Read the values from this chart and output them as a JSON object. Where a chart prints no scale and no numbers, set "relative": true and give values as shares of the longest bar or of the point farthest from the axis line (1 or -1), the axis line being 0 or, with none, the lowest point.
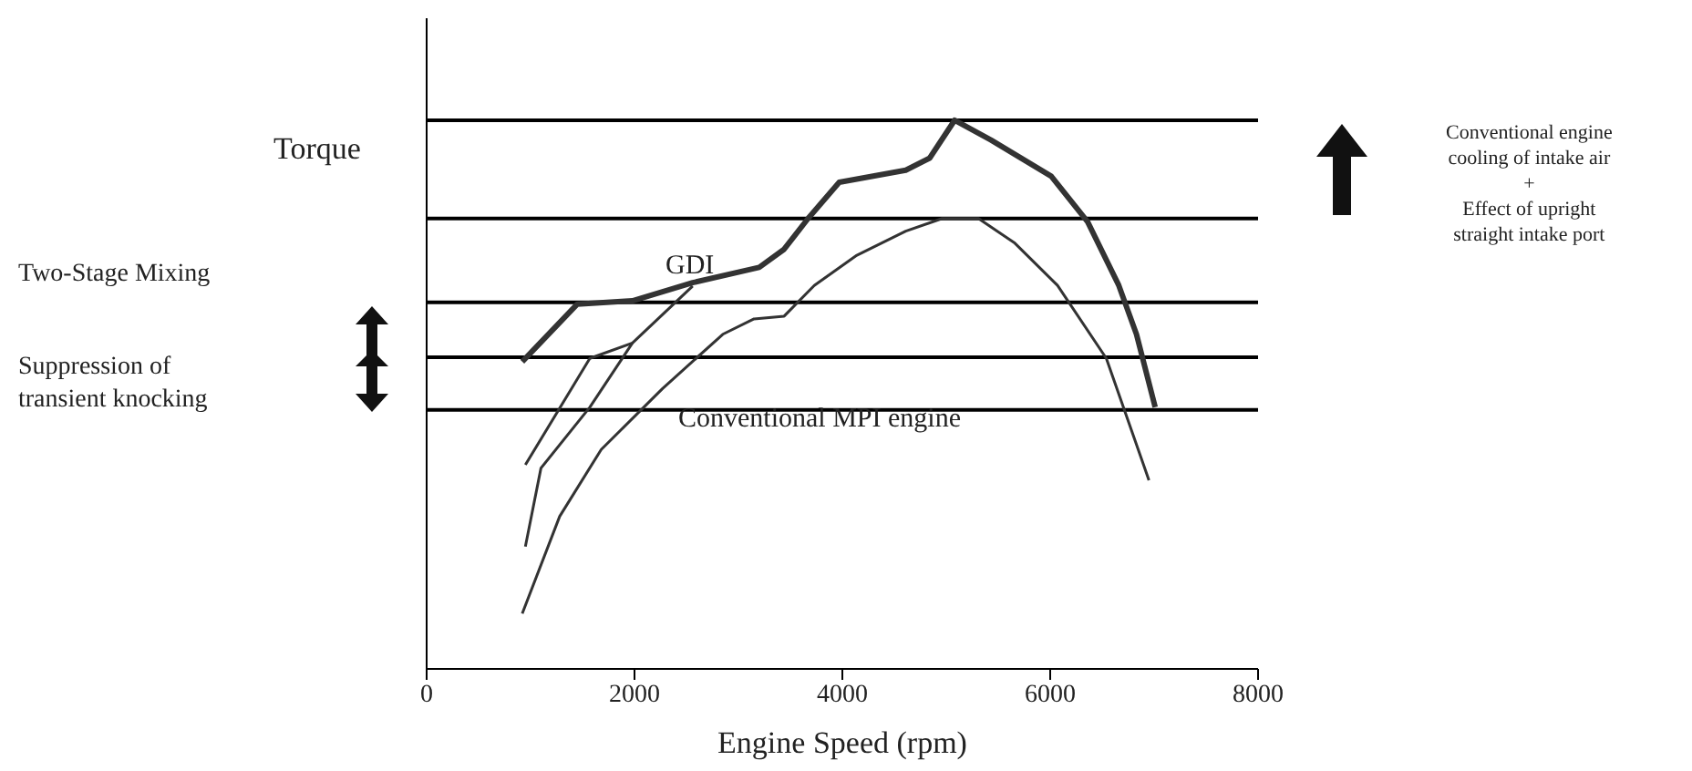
{
  "chart_data": {
    "type": "line",
    "relative": true,
    "xlabel": "Engine Speed (rpm)",
    "ylabel": "Torque",
    "xlim": [
      0,
      8000
    ],
    "xticks": [
      0,
      2000,
      4000,
      6000,
      8000
    ],
    "marker": "none",
    "line_style": "solid",
    "series": [
      {
        "name": "GDI",
        "color": "#333333",
        "x": [
          920,
          1450,
          1980,
          2560,
          3200,
          3440,
          3670,
          3970,
          4610,
          4840,
          5080,
          5430,
          6010,
          6360,
          6660,
          6830,
          7010
        ],
        "values": [
          0.56,
          0.665,
          0.671,
          0.704,
          0.732,
          0.765,
          0.821,
          0.887,
          0.909,
          0.931,
          1,
          0.964,
          0.898,
          0.815,
          0.699,
          0.61,
          0.477
        ]
      },
      {
        "color": "#333333",
        "x": [
          950,
          1570,
          1980,
          2560
        ],
        "values": [
          0.372,
          0.566,
          0.594,
          0.698
        ]
      },
      {
        "color": "#333333",
        "x": [
          950,
          1100,
          1570,
          1980
        ],
        "values": [
          0.223,
          0.366,
          0.477,
          0.594
        ]
      },
      {
        "name": "Conventional MPI engine",
        "color": "#333333",
        "x": [
          920,
          1280,
          1680,
          2270,
          2850,
          3150,
          3440,
          3730,
          4140,
          4610,
          4960,
          5310,
          5660,
          6070,
          6540,
          6950
        ],
        "values": [
          0.101,
          0.278,
          0.4,
          0.511,
          0.61,
          0.638,
          0.643,
          0.699,
          0.754,
          0.798,
          0.821,
          0.821,
          0.776,
          0.699,
          0.566,
          0.344
        ]
      }
    ],
    "ref_lines": [
      {
        "axis": "y",
        "value": 1,
        "color": "#000000"
      },
      {
        "axis": "y",
        "value": 0.821,
        "color": "#000000"
      },
      {
        "axis": "y",
        "value": 0.668,
        "color": "#000000"
      },
      {
        "axis": "y",
        "value": 0.568,
        "color": "#000000"
      },
      {
        "axis": "y",
        "value": 0.472,
        "color": "#000000"
      }
    ],
    "annotations": [
      "Two-Stage Mixing",
      "Suppression of\ntransient knocking",
      "Conventional engine\ncooling of intake air\n+\nEffect of upright\nstraight intake port"
    ]
  }
}
